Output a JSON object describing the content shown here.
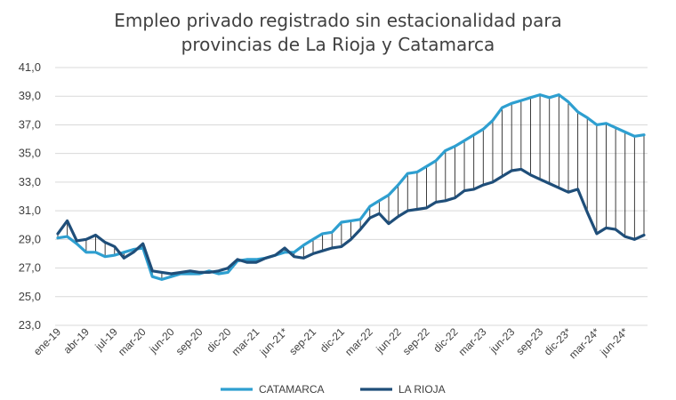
{
  "chart_data": {
    "type": "line",
    "title_line1": "Empleo privado registrado sin estacionalidad para",
    "title_line2": "provincias de La Rioja y Catamarca",
    "xlabel": "",
    "ylabel": "",
    "ylim": [
      23.0,
      41.0
    ],
    "y_ticks": [
      "23,0",
      "25,0",
      "27,0",
      "29,0",
      "31,0",
      "33,0",
      "35,0",
      "37,0",
      "39,0",
      "41,0"
    ],
    "y_tick_values": [
      23,
      25,
      27,
      29,
      31,
      33,
      35,
      37,
      39,
      41
    ],
    "x_tick_labels": [
      "ene-19",
      "abr-19",
      "jul-19",
      "mar-20",
      "jun-20",
      "sep-20",
      "dic-20",
      "mar-21",
      "jun-21*",
      "sep-21",
      "dic-21",
      "mar-22",
      "jun-22",
      "sep-22",
      "dic-22",
      "mar-23",
      "jun-23",
      "sep-23",
      "dic-23*",
      "mar-24*",
      "jun-24*"
    ],
    "x_tick_positions": [
      0,
      3,
      6,
      9,
      12,
      15,
      18,
      21,
      24,
      27,
      30,
      33,
      36,
      39,
      42,
      45,
      48,
      51,
      54,
      57,
      60
    ],
    "grid": true,
    "drop_lines": true,
    "legend_position": "bottom",
    "series": [
      {
        "name": "CATAMARCA",
        "color": "#2e9fd0",
        "values": [
          29.1,
          29.2,
          28.7,
          28.1,
          28.1,
          27.8,
          27.9,
          28.1,
          28.3,
          28.4,
          26.4,
          26.2,
          26.4,
          26.6,
          26.6,
          26.6,
          26.8,
          26.6,
          26.7,
          27.5,
          27.6,
          27.6,
          27.7,
          27.9,
          28.1,
          28.1,
          28.6,
          29.0,
          29.4,
          29.5,
          30.2,
          30.3,
          30.4,
          31.3,
          31.7,
          32.1,
          32.8,
          33.6,
          33.7,
          34.1,
          34.5,
          35.2,
          35.5,
          35.9,
          36.3,
          36.7,
          37.3,
          38.2,
          38.5,
          38.7,
          38.9,
          39.1,
          38.9,
          39.1,
          38.6,
          37.9,
          37.5,
          37.0,
          37.1,
          36.8,
          36.5,
          36.2,
          36.3
        ]
      },
      {
        "name": "LA RIOJA",
        "color": "#1f4e79",
        "values": [
          29.4,
          30.3,
          28.9,
          29.0,
          29.3,
          28.8,
          28.5,
          27.7,
          28.1,
          28.7,
          26.8,
          26.7,
          26.6,
          26.7,
          26.8,
          26.7,
          26.7,
          26.8,
          27.0,
          27.6,
          27.4,
          27.4,
          27.7,
          27.9,
          28.4,
          27.8,
          27.7,
          28.0,
          28.2,
          28.4,
          28.5,
          29.0,
          29.7,
          30.5,
          30.8,
          30.1,
          30.6,
          31.0,
          31.1,
          31.2,
          31.6,
          31.7,
          31.9,
          32.4,
          32.5,
          32.8,
          33.0,
          33.4,
          33.8,
          33.9,
          33.5,
          33.2,
          32.9,
          32.6,
          32.3,
          32.5,
          30.9,
          29.4,
          29.8,
          29.7,
          29.2,
          29.0,
          29.3
        ]
      }
    ]
  }
}
